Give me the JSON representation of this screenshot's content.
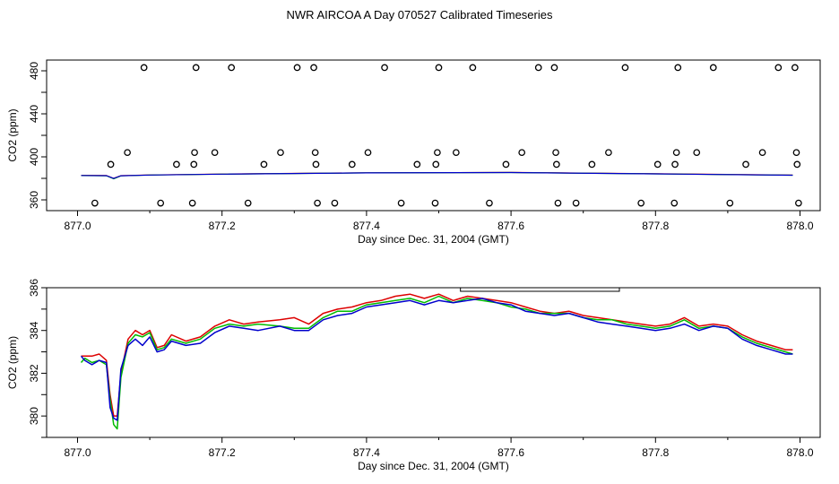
{
  "title": "NWR AIRCOA A  Day 070527  Calibrated Timeseries",
  "colors": {
    "red": "#dd0000",
    "green": "#00bb00",
    "blue": "#0000cc",
    "axis": "#000000"
  },
  "chart_data": [
    {
      "type": "scatter",
      "xlabel": "Day since Dec. 31, 2004 (GMT)",
      "ylabel": "CO2 (ppm)",
      "xlim": [
        877.0,
        878.0
      ],
      "ylim": [
        350,
        490
      ],
      "xticks": [
        "877.0",
        "877.2",
        "877.4",
        "877.6",
        "877.8",
        "878.0"
      ],
      "yticks": [
        "360",
        "400",
        "440",
        "480"
      ],
      "scatter_points": [
        {
          "x": 877.024,
          "y": 357
        },
        {
          "x": 877.046,
          "y": 393
        },
        {
          "x": 877.069,
          "y": 404
        },
        {
          "x": 877.092,
          "y": 483
        },
        {
          "x": 877.115,
          "y": 357
        },
        {
          "x": 877.137,
          "y": 393
        },
        {
          "x": 877.159,
          "y": 357
        },
        {
          "x": 877.161,
          "y": 393
        },
        {
          "x": 877.162,
          "y": 404
        },
        {
          "x": 877.164,
          "y": 483
        },
        {
          "x": 877.19,
          "y": 404
        },
        {
          "x": 877.213,
          "y": 483
        },
        {
          "x": 877.236,
          "y": 357
        },
        {
          "x": 877.258,
          "y": 393
        },
        {
          "x": 877.281,
          "y": 404
        },
        {
          "x": 877.304,
          "y": 483
        },
        {
          "x": 877.327,
          "y": 483
        },
        {
          "x": 877.329,
          "y": 404
        },
        {
          "x": 877.33,
          "y": 393
        },
        {
          "x": 877.332,
          "y": 357
        },
        {
          "x": 877.356,
          "y": 357
        },
        {
          "x": 877.38,
          "y": 393
        },
        {
          "x": 877.402,
          "y": 404
        },
        {
          "x": 877.425,
          "y": 483
        },
        {
          "x": 877.448,
          "y": 357
        },
        {
          "x": 877.47,
          "y": 393
        },
        {
          "x": 877.495,
          "y": 357
        },
        {
          "x": 877.496,
          "y": 393
        },
        {
          "x": 877.498,
          "y": 404
        },
        {
          "x": 877.5,
          "y": 483
        },
        {
          "x": 877.524,
          "y": 404
        },
        {
          "x": 877.547,
          "y": 483
        },
        {
          "x": 877.57,
          "y": 357
        },
        {
          "x": 877.593,
          "y": 393
        },
        {
          "x": 877.615,
          "y": 404
        },
        {
          "x": 877.638,
          "y": 483
        },
        {
          "x": 877.66,
          "y": 483
        },
        {
          "x": 877.662,
          "y": 404
        },
        {
          "x": 877.663,
          "y": 393
        },
        {
          "x": 877.665,
          "y": 357
        },
        {
          "x": 877.69,
          "y": 357
        },
        {
          "x": 877.712,
          "y": 393
        },
        {
          "x": 877.735,
          "y": 404
        },
        {
          "x": 877.758,
          "y": 483
        },
        {
          "x": 877.78,
          "y": 357
        },
        {
          "x": 877.803,
          "y": 393
        },
        {
          "x": 877.826,
          "y": 357
        },
        {
          "x": 877.827,
          "y": 393
        },
        {
          "x": 877.829,
          "y": 404
        },
        {
          "x": 877.831,
          "y": 483
        },
        {
          "x": 877.857,
          "y": 404
        },
        {
          "x": 877.88,
          "y": 483
        },
        {
          "x": 877.903,
          "y": 357
        },
        {
          "x": 877.925,
          "y": 393
        },
        {
          "x": 877.948,
          "y": 404
        },
        {
          "x": 877.97,
          "y": 483
        },
        {
          "x": 877.993,
          "y": 483
        },
        {
          "x": 877.995,
          "y": 404
        },
        {
          "x": 877.996,
          "y": 393
        },
        {
          "x": 877.998,
          "y": 357
        }
      ],
      "lines": [
        {
          "name": "red",
          "color": "#dd0000",
          "x": [
            877.005,
            877.04,
            877.05,
            877.06,
            877.1,
            877.2,
            877.4,
            877.6,
            877.8,
            877.99
          ],
          "y": [
            382.8,
            382.6,
            380.0,
            382.5,
            383.2,
            384.0,
            385.2,
            385.5,
            384.3,
            383.0
          ]
        },
        {
          "name": "green",
          "color": "#00bb00",
          "x": [
            877.005,
            877.04,
            877.05,
            877.06,
            877.1,
            877.2,
            877.4,
            877.6,
            877.8,
            877.99
          ],
          "y": [
            382.6,
            382.4,
            379.6,
            382.3,
            383.1,
            383.9,
            385.1,
            385.4,
            384.2,
            382.9
          ]
        },
        {
          "name": "blue",
          "color": "#0000cc",
          "x": [
            877.005,
            877.04,
            877.05,
            877.06,
            877.1,
            877.2,
            877.4,
            877.6,
            877.8,
            877.99
          ],
          "y": [
            382.7,
            382.5,
            379.9,
            382.4,
            383.1,
            383.9,
            385.1,
            385.4,
            384.2,
            382.9
          ]
        }
      ]
    },
    {
      "type": "line",
      "xlabel": "Day since Dec. 31, 2004 (GMT)",
      "ylabel": "CO2 (ppm)",
      "xlim": [
        877.0,
        878.0
      ],
      "ylim": [
        379,
        386
      ],
      "xticks": [
        "877.0",
        "877.2",
        "877.4",
        "877.6",
        "877.8",
        "878.0"
      ],
      "yticks": [
        "380",
        "382",
        "384",
        "386"
      ],
      "annotation_box_x": [
        877.53,
        877.75
      ],
      "series": [
        {
          "name": "red",
          "color": "#dd0000",
          "x": [
            877.005,
            877.01,
            877.02,
            877.03,
            877.04,
            877.045,
            877.05,
            877.055,
            877.06,
            877.07,
            877.08,
            877.09,
            877.1,
            877.11,
            877.12,
            877.13,
            877.15,
            877.17,
            877.19,
            877.21,
            877.23,
            877.25,
            877.28,
            877.3,
            877.32,
            877.34,
            877.36,
            877.38,
            877.4,
            877.42,
            877.44,
            877.46,
            877.48,
            877.5,
            877.52,
            877.54,
            877.56,
            877.58,
            877.6,
            877.62,
            877.64,
            877.66,
            877.68,
            877.7,
            877.72,
            877.74,
            877.76,
            877.78,
            877.8,
            877.82,
            877.84,
            877.86,
            877.88,
            877.9,
            877.92,
            877.94,
            877.96,
            877.98,
            877.99
          ],
          "y": [
            382.8,
            382.8,
            382.8,
            382.9,
            382.6,
            381.0,
            380.0,
            380.0,
            382.0,
            383.6,
            384.0,
            383.8,
            384.0,
            383.2,
            383.3,
            383.8,
            383.5,
            383.7,
            384.2,
            384.5,
            384.3,
            384.4,
            384.5,
            384.6,
            384.3,
            384.8,
            385.0,
            385.1,
            385.3,
            385.4,
            385.6,
            385.7,
            385.5,
            385.7,
            385.4,
            385.6,
            385.5,
            385.4,
            385.3,
            385.1,
            384.9,
            384.8,
            384.9,
            384.7,
            384.6,
            384.5,
            384.4,
            384.3,
            384.2,
            384.3,
            384.6,
            384.2,
            384.3,
            384.2,
            383.8,
            383.5,
            383.3,
            383.1,
            383.1
          ]
        },
        {
          "name": "green",
          "color": "#00bb00",
          "x": [
            877.005,
            877.01,
            877.02,
            877.03,
            877.04,
            877.045,
            877.05,
            877.055,
            877.06,
            877.07,
            877.08,
            877.09,
            877.1,
            877.11,
            877.12,
            877.13,
            877.15,
            877.17,
            877.19,
            877.21,
            877.23,
            877.25,
            877.28,
            877.3,
            877.32,
            877.34,
            877.36,
            877.38,
            877.4,
            877.42,
            877.44,
            877.46,
            877.48,
            877.5,
            877.52,
            877.54,
            877.56,
            877.58,
            877.6,
            877.62,
            877.64,
            877.66,
            877.68,
            877.7,
            877.72,
            877.74,
            877.76,
            877.78,
            877.8,
            877.82,
            877.84,
            877.86,
            877.88,
            877.9,
            877.92,
            877.94,
            877.96,
            877.98,
            877.99
          ],
          "y": [
            382.5,
            382.7,
            382.5,
            382.6,
            382.4,
            380.8,
            379.6,
            379.4,
            381.8,
            383.4,
            383.8,
            383.7,
            383.9,
            383.1,
            383.2,
            383.6,
            383.4,
            383.6,
            384.1,
            384.3,
            384.2,
            384.3,
            384.2,
            384.1,
            384.1,
            384.6,
            384.9,
            384.9,
            385.2,
            385.3,
            385.4,
            385.5,
            385.3,
            385.6,
            385.3,
            385.5,
            385.4,
            385.3,
            385.1,
            385.0,
            384.8,
            384.8,
            384.8,
            384.6,
            384.5,
            384.5,
            384.3,
            384.2,
            384.1,
            384.2,
            384.5,
            384.1,
            384.2,
            384.1,
            383.7,
            383.4,
            383.2,
            383.0,
            382.9
          ]
        },
        {
          "name": "blue",
          "color": "#0000cc",
          "x": [
            877.005,
            877.01,
            877.02,
            877.03,
            877.04,
            877.045,
            877.05,
            877.055,
            877.06,
            877.07,
            877.08,
            877.09,
            877.1,
            877.11,
            877.12,
            877.13,
            877.15,
            877.17,
            877.19,
            877.21,
            877.23,
            877.25,
            877.28,
            877.3,
            877.32,
            877.34,
            877.36,
            877.38,
            877.4,
            877.42,
            877.44,
            877.46,
            877.48,
            877.5,
            877.52,
            877.54,
            877.56,
            877.58,
            877.6,
            877.62,
            877.64,
            877.66,
            877.68,
            877.7,
            877.72,
            877.74,
            877.76,
            877.78,
            877.8,
            877.82,
            877.84,
            877.86,
            877.88,
            877.9,
            877.92,
            877.94,
            877.96,
            877.98,
            877.99
          ],
          "y": [
            382.8,
            382.6,
            382.4,
            382.6,
            382.5,
            380.4,
            379.9,
            379.8,
            382.2,
            383.3,
            383.6,
            383.3,
            383.7,
            383.0,
            383.1,
            383.5,
            383.3,
            383.4,
            383.9,
            384.2,
            384.1,
            384.0,
            384.2,
            384.0,
            384.0,
            384.5,
            384.7,
            384.8,
            385.1,
            385.2,
            385.3,
            385.4,
            385.2,
            385.4,
            385.3,
            385.4,
            385.5,
            385.3,
            385.2,
            384.9,
            384.8,
            384.7,
            384.8,
            384.6,
            384.4,
            384.3,
            384.2,
            384.1,
            384.0,
            384.1,
            384.3,
            384.0,
            384.2,
            384.1,
            383.6,
            383.3,
            383.1,
            382.9,
            382.9
          ]
        }
      ]
    }
  ]
}
